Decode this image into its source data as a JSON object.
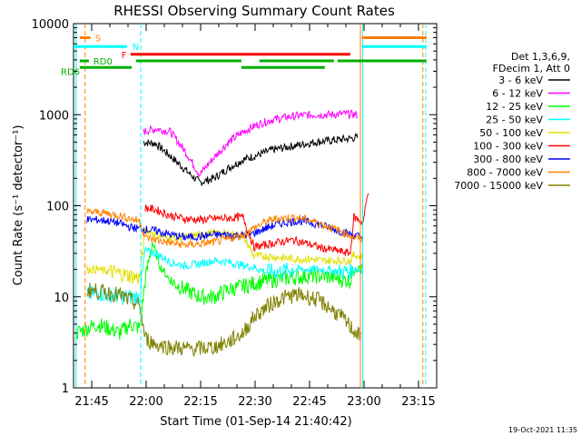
{
  "chart_data": {
    "type": "line",
    "title": "RHESSI Observing Summary Count Rates",
    "xlabel": "Start Time (01-Sep-14 21:40:42)",
    "ylabel": "Count Rate (s⁻¹ detector⁻¹)",
    "yscale": "log",
    "ylim": [
      1,
      10000
    ],
    "xlim_minutes_from_start": [
      -0.7,
      99.3
    ],
    "x_ticks": [
      {
        "label": "21:45",
        "minute": 4.3
      },
      {
        "label": "22:00",
        "minute": 19.3
      },
      {
        "label": "22:15",
        "minute": 34.3
      },
      {
        "label": "22:30",
        "minute": 49.3
      },
      {
        "label": "22:45",
        "minute": 64.3
      },
      {
        "label": "23:00",
        "minute": 79.3
      },
      {
        "label": "23:15",
        "minute": 94.3
      }
    ],
    "y_ticks": [
      {
        "label": "1",
        "value": 1
      },
      {
        "label": "10",
        "value": 10
      },
      {
        "label": "100",
        "value": 100
      },
      {
        "label": "1000",
        "value": 1000
      },
      {
        "label": "10000",
        "value": 10000
      }
    ],
    "legend": {
      "header": [
        "Det 1,3,6,9,",
        "FDecim 1, Att 0"
      ],
      "position": "right"
    },
    "timestamp": "19-Oct-2021 11:35",
    "series": [
      {
        "name": "3 - 6 keV",
        "color": "#000000",
        "x": [
          18.5,
          22,
          26,
          30,
          34,
          38,
          42,
          46,
          50,
          54,
          58,
          62,
          66,
          70,
          74,
          77.5
        ],
        "values": [
          500,
          480,
          350,
          250,
          180,
          200,
          260,
          320,
          360,
          410,
          440,
          470,
          500,
          520,
          540,
          560
        ]
      },
      {
        "name": "6 - 12 keV",
        "color": "#ff00ff",
        "x": [
          18.5,
          22,
          26,
          30,
          34,
          38,
          42,
          46,
          50,
          54,
          58,
          62,
          66,
          70,
          74,
          77.5
        ],
        "values": [
          650,
          700,
          650,
          400,
          220,
          340,
          500,
          650,
          780,
          880,
          940,
          980,
          1000,
          1000,
          1020,
          1000
        ]
      },
      {
        "name": "12 - 25 keV",
        "color": "#00ff00",
        "x": [
          0,
          3,
          6,
          9,
          12,
          15,
          17.5,
          19,
          21,
          23,
          26,
          30,
          34,
          38,
          42,
          46,
          49,
          52,
          55,
          58,
          61,
          64,
          67,
          70,
          73,
          75.5,
          76.5,
          79
        ],
        "values": [
          4,
          4.5,
          5,
          4.5,
          4,
          5,
          4.5,
          15,
          40,
          22,
          15,
          12,
          10,
          10,
          12,
          13,
          14,
          15,
          15.5,
          16,
          16.5,
          17,
          17,
          16.5,
          15.5,
          15,
          20,
          21
        ]
      },
      {
        "name": "25 - 50 keV",
        "color": "#00ffff",
        "x": [
          3,
          6,
          9,
          12,
          15,
          17.5,
          19,
          22,
          26,
          30,
          34,
          38,
          42,
          46,
          49,
          52,
          56,
          60,
          64,
          68,
          72,
          75.5,
          76.5,
          79
        ],
        "values": [
          10.5,
          11,
          10.5,
          10,
          10,
          10,
          32,
          30,
          24,
          22,
          23,
          25,
          24,
          22,
          21,
          19,
          19,
          20,
          20,
          20,
          19,
          19,
          21,
          19
        ]
      },
      {
        "name": "50 - 100 keV",
        "color": "#e0e000",
        "x": [
          3,
          6,
          9,
          12,
          15,
          17.5,
          19,
          22,
          26,
          30,
          34,
          38,
          42,
          46,
          49,
          52,
          56,
          60,
          64,
          68,
          72,
          75.5,
          76.5,
          79
        ],
        "values": [
          20,
          20,
          19,
          18,
          17,
          16,
          55,
          48,
          44,
          45,
          48,
          50,
          49,
          47,
          28,
          28,
          27,
          26,
          26,
          25,
          25,
          25,
          29,
          27
        ]
      },
      {
        "name": "100 - 300 keV",
        "color": "#ff0000",
        "x": [
          19,
          22,
          26,
          30,
          34,
          38,
          42,
          46,
          49,
          52,
          56,
          60,
          64,
          68,
          72,
          75.5,
          76.5,
          79,
          80.5
        ],
        "values": [
          95,
          90,
          78,
          72,
          70,
          72,
          73,
          75,
          35,
          37,
          40,
          42,
          38,
          34,
          32,
          30,
          75,
          65,
          150
        ]
      },
      {
        "name": "300 - 800 keV",
        "color": "#0000ff",
        "x": [
          3,
          6,
          9,
          12,
          15,
          17.5,
          19,
          22,
          26,
          30,
          34,
          38,
          42,
          46,
          49,
          52,
          55,
          58,
          61,
          64,
          67,
          70,
          73,
          76,
          79
        ],
        "values": [
          70,
          70,
          68,
          64,
          58,
          56,
          55,
          53,
          48,
          45,
          46,
          48,
          48,
          47,
          50,
          56,
          62,
          66,
          68,
          66,
          62,
          57,
          52,
          48,
          45
        ]
      },
      {
        "name": "800 - 7000 keV",
        "color": "#ff8000",
        "x": [
          3,
          6,
          9,
          12,
          15,
          17.5,
          19,
          22,
          26,
          30,
          34,
          38,
          42,
          46,
          49,
          52,
          55,
          58,
          61,
          64,
          67,
          70,
          73,
          76,
          79
        ],
        "values": [
          85,
          85,
          82,
          78,
          72,
          68,
          45,
          42,
          39,
          37,
          38,
          40,
          43,
          48,
          57,
          66,
          72,
          74,
          74,
          70,
          64,
          58,
          52,
          46,
          42
        ]
      },
      {
        "name": "7000 - 15000 keV",
        "color": "#808000",
        "x": [
          3,
          6,
          9,
          12,
          15,
          17.5,
          19,
          22,
          26,
          30,
          34,
          38,
          42,
          46,
          49,
          52,
          55,
          58,
          61,
          64,
          67,
          70,
          73,
          76,
          78.5
        ],
        "values": [
          12,
          11.5,
          11,
          10.5,
          9,
          8,
          3.5,
          3,
          2.8,
          2.7,
          2.7,
          2.8,
          3.2,
          4,
          6,
          7.5,
          9,
          10,
          10.5,
          10,
          9,
          7.5,
          6,
          4.5,
          3.5
        ]
      }
    ],
    "flag_bars": [
      {
        "label": "S",
        "color": "#ff8000",
        "y_value": 7000,
        "segments": [
          [
            1,
            4
          ]
        ]
      },
      {
        "label": "",
        "color": "#ff8000",
        "y_value": 7000,
        "segments": [
          [
            78.7,
            96.5
          ]
        ]
      },
      {
        "label": "N",
        "color": "#00ffff",
        "y_value": 5600,
        "segments": [
          [
            -0.7,
            14
          ]
        ]
      },
      {
        "label": "",
        "color": "#00ffff",
        "y_value": 5600,
        "segments": [
          [
            78.7,
            96.5
          ]
        ]
      },
      {
        "label": "F",
        "color": "#ff0000",
        "y_value": 4600,
        "segments": [
          [
            15,
            75.5
          ]
        ]
      },
      {
        "label": "RD0",
        "color": "#00b000",
        "y_value": 3900,
        "segments": [
          [
            1,
            3.5
          ],
          [
            16.5,
            45.5
          ],
          [
            50.5,
            71
          ],
          [
            72,
            96.5
          ]
        ]
      },
      {
        "label": "RD6",
        "color": "#00b000",
        "y_value": 3300,
        "segments": [
          [
            1,
            15.3
          ],
          [
            45.5,
            68.5
          ]
        ]
      }
    ],
    "vertical_markers": [
      {
        "color": "#00ffff",
        "style": "solid",
        "x": 0
      },
      {
        "color": "#ff8000",
        "style": "dashed",
        "x": 2.5
      },
      {
        "color": "#00ffff",
        "style": "dashed",
        "x": 17.8
      },
      {
        "color": "#ff8000",
        "style": "solid",
        "x": 78.3
      },
      {
        "color": "#00ffff",
        "style": "solid",
        "x": 78.9
      },
      {
        "color": "#ff8000",
        "style": "dashed",
        "x": 95.5
      },
      {
        "color": "#00ffff",
        "style": "dashed",
        "x": 96.3
      }
    ]
  }
}
